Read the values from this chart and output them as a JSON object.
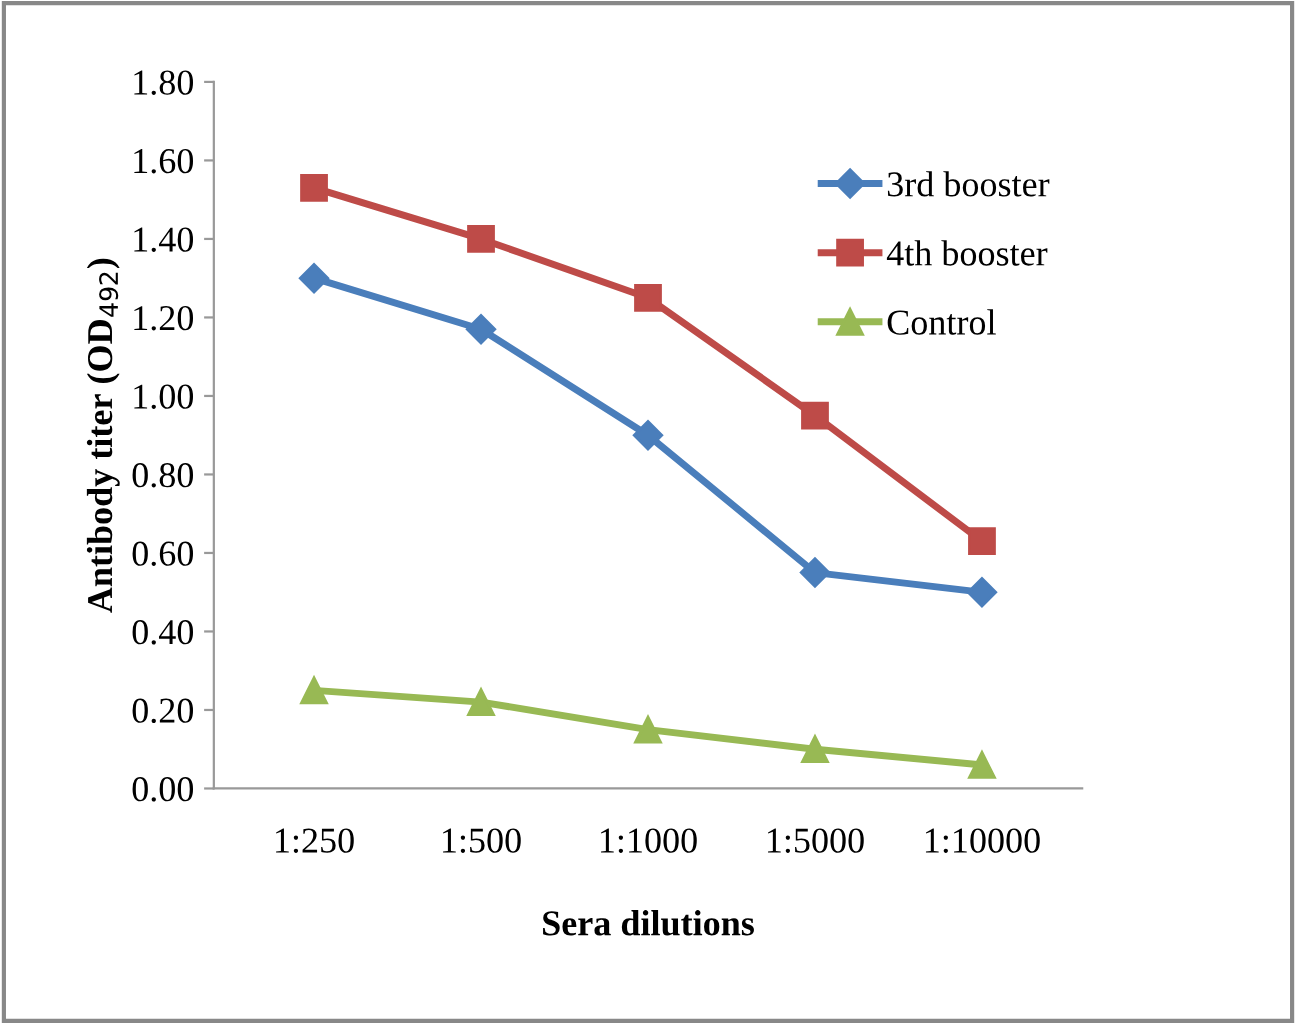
{
  "chart_data": {
    "type": "line",
    "xlabel": "Sera dilutions",
    "ylabel": "Antibody titer (OD$_{492}$)",
    "categories": [
      "1:250",
      "1:500",
      "1:1000",
      "1:5000",
      "1:10000"
    ],
    "series": [
      {
        "name": "3rd booster",
        "color": "#4a7ebb",
        "marker": "diamond",
        "values": [
          1.3,
          1.17,
          0.9,
          0.55,
          0.5
        ]
      },
      {
        "name": "4th booster",
        "color": "#be4b48",
        "marker": "square",
        "values": [
          1.53,
          1.4,
          1.25,
          0.95,
          0.63
        ]
      },
      {
        "name": "Control",
        "color": "#98b954",
        "marker": "triangle",
        "values": [
          0.25,
          0.22,
          0.15,
          0.1,
          0.06
        ]
      }
    ],
    "ylim": [
      0,
      1.8
    ],
    "yticks": [
      {
        "value": 0,
        "label": "0.00"
      },
      {
        "value": 0.2,
        "label": "0.20"
      },
      {
        "value": 0.4,
        "label": "0.40"
      },
      {
        "value": 0.6,
        "label": "0.60"
      },
      {
        "value": 0.8,
        "label": "0.80"
      },
      {
        "value": 1.0,
        "label": "1.00"
      },
      {
        "value": 1.2,
        "label": "1.20"
      },
      {
        "value": 1.4,
        "label": "1.40"
      },
      {
        "value": 1.6,
        "label": "1.60"
      },
      {
        "value": 1.8,
        "label": "1.80"
      }
    ],
    "grid": false,
    "legend": "top right",
    "line_style": "solid"
  }
}
